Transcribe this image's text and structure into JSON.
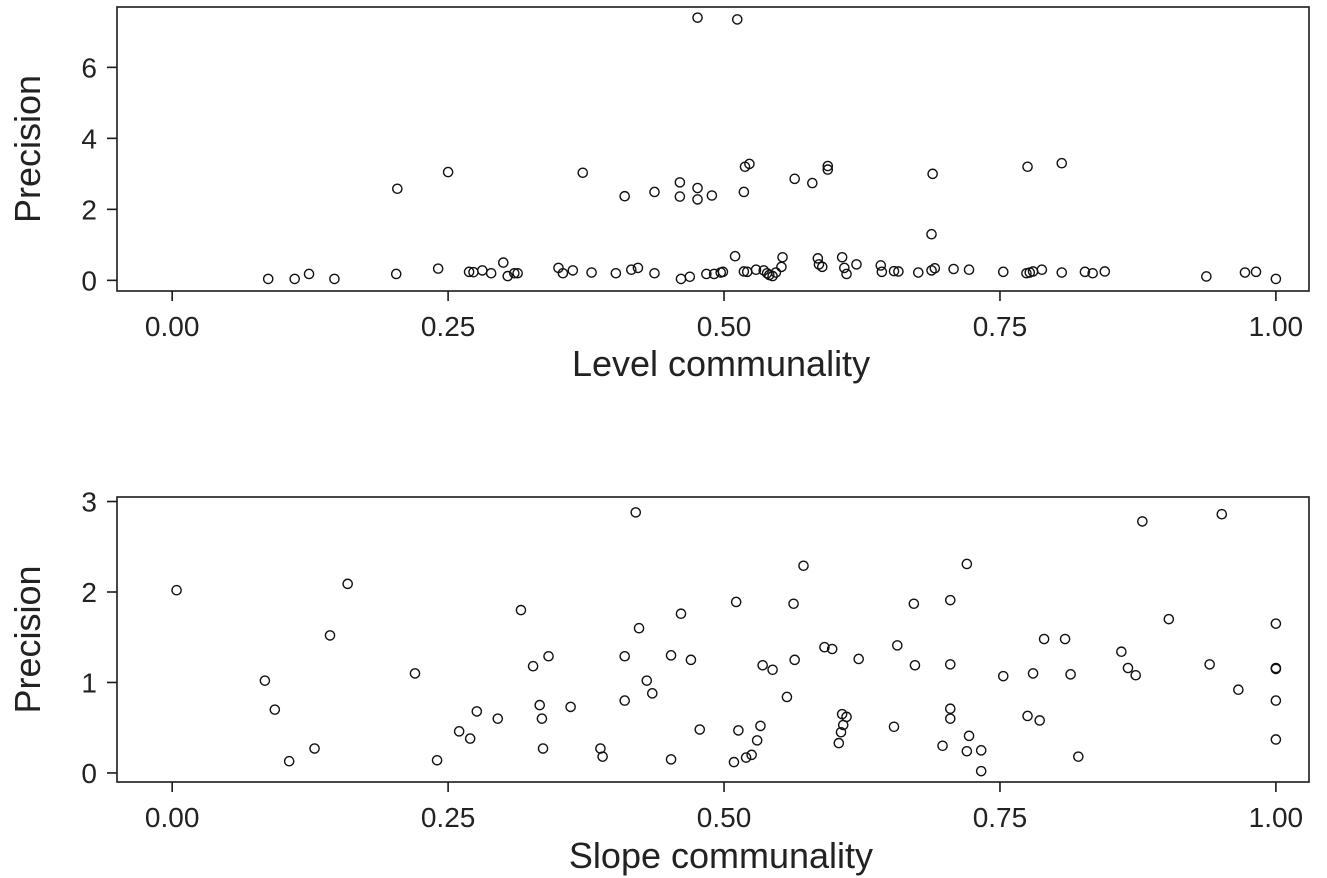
{
  "chart_data": [
    {
      "type": "scatter",
      "xlabel": "Level communality",
      "ylabel": "Precision",
      "xlim": [
        -0.05,
        1.03
      ],
      "ylim": [
        -0.3,
        7.7
      ],
      "xticks": [
        "0.00",
        "0.25",
        "0.50",
        "0.75",
        "1.00"
      ],
      "yticks": [
        "0",
        "2",
        "4",
        "6"
      ],
      "points": [
        [
          0.476,
          7.4
        ],
        [
          0.512,
          7.35
        ],
        [
          0.204,
          2.58
        ],
        [
          0.25,
          3.05
        ],
        [
          0.372,
          3.03
        ],
        [
          0.41,
          2.37
        ],
        [
          0.437,
          2.49
        ],
        [
          0.46,
          2.76
        ],
        [
          0.46,
          2.36
        ],
        [
          0.476,
          2.6
        ],
        [
          0.476,
          2.28
        ],
        [
          0.489,
          2.39
        ],
        [
          0.518,
          2.49
        ],
        [
          0.519,
          3.2
        ],
        [
          0.523,
          3.28
        ],
        [
          0.564,
          2.86
        ],
        [
          0.58,
          2.74
        ],
        [
          0.594,
          3.22
        ],
        [
          0.594,
          3.12
        ],
        [
          0.689,
          3.0
        ],
        [
          0.775,
          3.2
        ],
        [
          0.806,
          3.3
        ],
        [
          0.688,
          1.3
        ],
        [
          0.087,
          0.04
        ],
        [
          0.111,
          0.04
        ],
        [
          0.124,
          0.18
        ],
        [
          0.147,
          0.04
        ],
        [
          0.203,
          0.18
        ],
        [
          0.241,
          0.33
        ],
        [
          0.269,
          0.24
        ],
        [
          0.273,
          0.23
        ],
        [
          0.281,
          0.28
        ],
        [
          0.289,
          0.2
        ],
        [
          0.3,
          0.5
        ],
        [
          0.304,
          0.12
        ],
        [
          0.31,
          0.2
        ],
        [
          0.313,
          0.2
        ],
        [
          0.35,
          0.35
        ],
        [
          0.354,
          0.2
        ],
        [
          0.363,
          0.28
        ],
        [
          0.38,
          0.22
        ],
        [
          0.402,
          0.2
        ],
        [
          0.416,
          0.3
        ],
        [
          0.422,
          0.35
        ],
        [
          0.437,
          0.2
        ],
        [
          0.461,
          0.04
        ],
        [
          0.469,
          0.1
        ],
        [
          0.484,
          0.18
        ],
        [
          0.491,
          0.18
        ],
        [
          0.497,
          0.22
        ],
        [
          0.499,
          0.24
        ],
        [
          0.51,
          0.68
        ],
        [
          0.518,
          0.25
        ],
        [
          0.521,
          0.24
        ],
        [
          0.529,
          0.3
        ],
        [
          0.536,
          0.28
        ],
        [
          0.539,
          0.2
        ],
        [
          0.541,
          0.15
        ],
        [
          0.544,
          0.12
        ],
        [
          0.547,
          0.22
        ],
        [
          0.552,
          0.38
        ],
        [
          0.553,
          0.65
        ],
        [
          0.585,
          0.62
        ],
        [
          0.586,
          0.45
        ],
        [
          0.589,
          0.38
        ],
        [
          0.607,
          0.65
        ],
        [
          0.609,
          0.35
        ],
        [
          0.611,
          0.18
        ],
        [
          0.62,
          0.45
        ],
        [
          0.642,
          0.42
        ],
        [
          0.643,
          0.24
        ],
        [
          0.654,
          0.26
        ],
        [
          0.658,
          0.25
        ],
        [
          0.676,
          0.22
        ],
        [
          0.688,
          0.28
        ],
        [
          0.691,
          0.34
        ],
        [
          0.708,
          0.32
        ],
        [
          0.722,
          0.3
        ],
        [
          0.753,
          0.24
        ],
        [
          0.774,
          0.2
        ],
        [
          0.777,
          0.22
        ],
        [
          0.78,
          0.25
        ],
        [
          0.788,
          0.3
        ],
        [
          0.806,
          0.22
        ],
        [
          0.827,
          0.24
        ],
        [
          0.834,
          0.2
        ],
        [
          0.845,
          0.25
        ],
        [
          0.937,
          0.11
        ],
        [
          0.972,
          0.22
        ],
        [
          0.982,
          0.24
        ],
        [
          1.0,
          0.04
        ]
      ]
    },
    {
      "type": "scatter",
      "xlabel": "Slope communality",
      "ylabel": "Precision",
      "xlim": [
        -0.05,
        1.03
      ],
      "ylim": [
        -0.1,
        3.05
      ],
      "xticks": [
        "0.00",
        "0.25",
        "0.50",
        "0.75",
        "1.00"
      ],
      "yticks": [
        "0",
        "1",
        "2",
        "3"
      ],
      "points": [
        [
          0.004,
          2.02
        ],
        [
          0.084,
          1.02
        ],
        [
          0.093,
          0.7
        ],
        [
          0.106,
          0.13
        ],
        [
          0.129,
          0.27
        ],
        [
          0.143,
          1.52
        ],
        [
          0.159,
          2.09
        ],
        [
          0.22,
          1.1
        ],
        [
          0.24,
          0.14
        ],
        [
          0.26,
          0.46
        ],
        [
          0.27,
          0.38
        ],
        [
          0.276,
          0.68
        ],
        [
          0.295,
          0.6
        ],
        [
          0.316,
          1.8
        ],
        [
          0.327,
          1.18
        ],
        [
          0.333,
          0.75
        ],
        [
          0.335,
          0.6
        ],
        [
          0.336,
          0.27
        ],
        [
          0.341,
          1.29
        ],
        [
          0.361,
          0.73
        ],
        [
          0.388,
          0.27
        ],
        [
          0.39,
          0.18
        ],
        [
          0.41,
          0.8
        ],
        [
          0.41,
          1.29
        ],
        [
          0.42,
          2.88
        ],
        [
          0.423,
          1.6
        ],
        [
          0.43,
          1.02
        ],
        [
          0.435,
          0.88
        ],
        [
          0.452,
          0.15
        ],
        [
          0.452,
          1.3
        ],
        [
          0.461,
          1.76
        ],
        [
          0.47,
          1.25
        ],
        [
          0.478,
          0.48
        ],
        [
          0.509,
          0.12
        ],
        [
          0.511,
          1.89
        ],
        [
          0.513,
          0.47
        ],
        [
          0.52,
          0.17
        ],
        [
          0.525,
          0.2
        ],
        [
          0.53,
          0.36
        ],
        [
          0.533,
          0.52
        ],
        [
          0.535,
          1.19
        ],
        [
          0.544,
          1.14
        ],
        [
          0.557,
          0.84
        ],
        [
          0.563,
          1.87
        ],
        [
          0.564,
          1.25
        ],
        [
          0.572,
          2.29
        ],
        [
          0.591,
          1.39
        ],
        [
          0.598,
          1.37
        ],
        [
          0.604,
          0.33
        ],
        [
          0.606,
          0.45
        ],
        [
          0.607,
          0.65
        ],
        [
          0.608,
          0.53
        ],
        [
          0.611,
          0.62
        ],
        [
          0.622,
          1.26
        ],
        [
          0.654,
          0.51
        ],
        [
          0.657,
          1.41
        ],
        [
          0.672,
          1.87
        ],
        [
          0.673,
          1.19
        ],
        [
          0.698,
          0.3
        ],
        [
          0.705,
          1.91
        ],
        [
          0.705,
          1.2
        ],
        [
          0.705,
          0.71
        ],
        [
          0.705,
          0.6
        ],
        [
          0.72,
          0.24
        ],
        [
          0.72,
          2.31
        ],
        [
          0.722,
          0.41
        ],
        [
          0.733,
          0.02
        ],
        [
          0.733,
          0.25
        ],
        [
          0.753,
          1.07
        ],
        [
          0.775,
          0.63
        ],
        [
          0.78,
          1.1
        ],
        [
          0.786,
          0.58
        ],
        [
          0.79,
          1.48
        ],
        [
          0.809,
          1.48
        ],
        [
          0.814,
          1.09
        ],
        [
          0.821,
          0.18
        ],
        [
          0.86,
          1.34
        ],
        [
          0.866,
          1.16
        ],
        [
          0.873,
          1.08
        ],
        [
          0.879,
          2.78
        ],
        [
          0.903,
          1.7
        ],
        [
          0.94,
          1.2
        ],
        [
          0.951,
          2.86
        ],
        [
          0.966,
          0.92
        ],
        [
          1.0,
          1.65
        ],
        [
          1.0,
          1.16
        ],
        [
          1.0,
          1.15
        ],
        [
          1.0,
          0.8
        ],
        [
          1.0,
          0.37
        ]
      ]
    }
  ]
}
